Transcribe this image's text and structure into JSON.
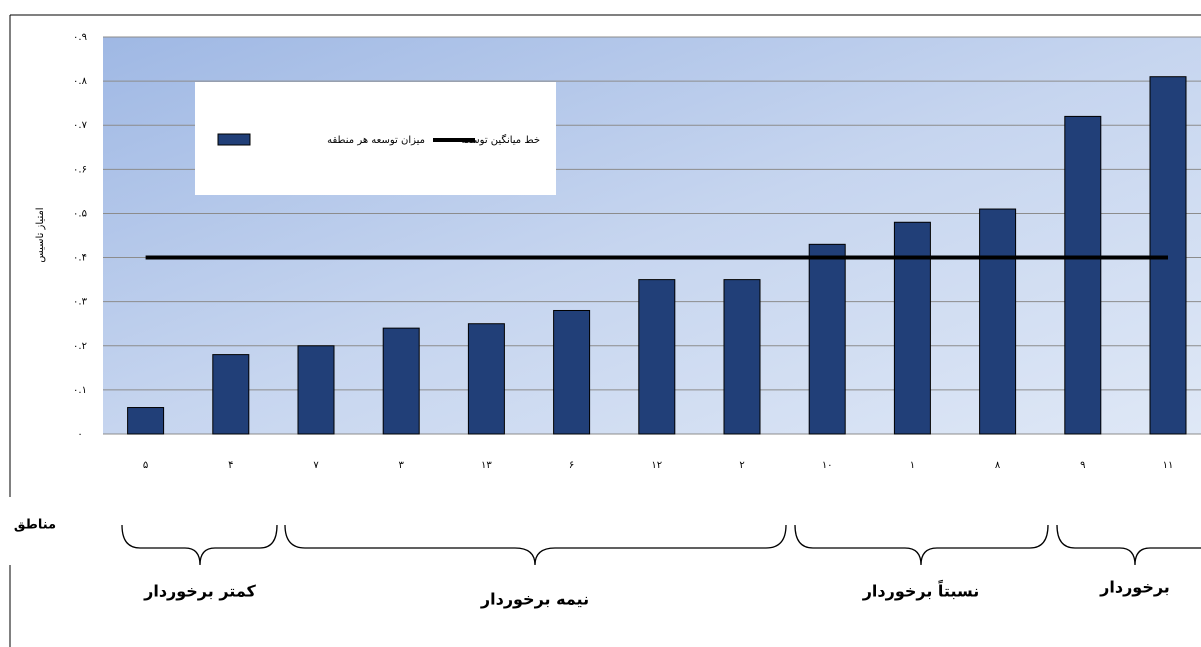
{
  "chart_data": {
    "type": "bar",
    "y_label": "امتیاز تاسیس",
    "x_label": "مناطق",
    "categories": [
      "۵",
      "۴",
      "۷",
      "۳",
      "۱۳",
      "۶",
      "۱۲",
      "۲",
      "۱۰",
      "۱",
      "۸",
      "۹",
      "۱۱"
    ],
    "series": [
      {
        "name": "میزان توسعه هر منطقه",
        "color": "#213f78",
        "values": [
          0.06,
          0.18,
          0.2,
          0.24,
          0.25,
          0.28,
          0.35,
          0.35,
          0.43,
          0.48,
          0.51,
          0.72,
          0.81
        ]
      }
    ],
    "average": {
      "name": "خط میانگین توسعه",
      "color": "#000000",
      "value": 0.4
    },
    "ylim": [
      0,
      0.9
    ],
    "yticks": [
      {
        "value": 0,
        "label": "۰"
      },
      {
        "value": 0.1,
        "label": "۰.۱"
      },
      {
        "value": 0.2,
        "label": "۰.۲"
      },
      {
        "value": 0.3,
        "label": "۰.۳"
      },
      {
        "value": 0.4,
        "label": "۰.۴"
      },
      {
        "value": 0.5,
        "label": "۰.۵"
      },
      {
        "value": 0.6,
        "label": "۰.۶"
      },
      {
        "value": 0.7,
        "label": "۰.۷"
      },
      {
        "value": 0.8,
        "label": "۰.۸"
      },
      {
        "value": 0.9,
        "label": "۰.۹"
      }
    ],
    "grid": true,
    "groups": [
      "کمتر برخوردار",
      "نیمه برخوردار",
      "نسبتاً برخوردار",
      "برخوردار"
    ]
  }
}
